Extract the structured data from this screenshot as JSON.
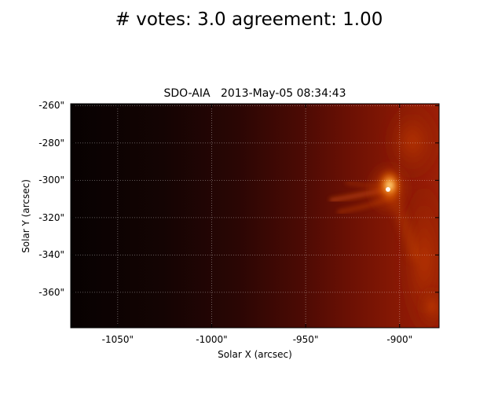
{
  "figure": {
    "suptitle": "# votes: 3.0 agreement: 1.00"
  },
  "image": {
    "title": "SDO-AIA   2013-May-05 08:34:43",
    "colormap": "sdoaia-heat",
    "colors": {
      "dark": "#0b0202",
      "mid": "#6a0e04",
      "bright": "#c43a04",
      "highlight": "#ffb040"
    }
  },
  "axes": {
    "xlabel": "Solar X (arcsec)",
    "ylabel": "Solar Y (arcsec)",
    "xlim": [
      -1075,
      -879
    ],
    "ylim": [
      -379,
      -259
    ],
    "xticks": [
      {
        "value": -1050,
        "label": "-1050\""
      },
      {
        "value": -1000,
        "label": "-1000\""
      },
      {
        "value": -950,
        "label": "-950\""
      },
      {
        "value": -900,
        "label": "-900\""
      }
    ],
    "yticks": [
      {
        "value": -260,
        "label": "-260\""
      },
      {
        "value": -280,
        "label": "-280\""
      },
      {
        "value": -300,
        "label": "-300\""
      },
      {
        "value": -320,
        "label": "-320\""
      },
      {
        "value": -340,
        "label": "-340\""
      },
      {
        "value": -360,
        "label": "-360\""
      }
    ],
    "grid": true
  }
}
